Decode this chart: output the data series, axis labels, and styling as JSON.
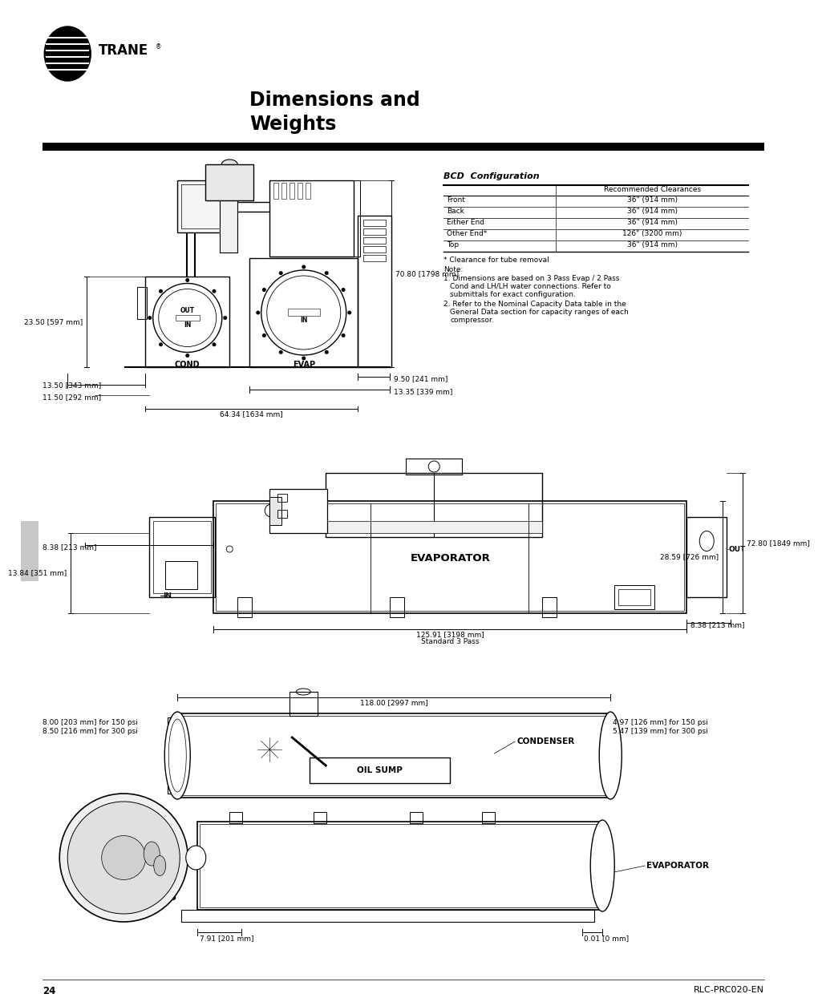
{
  "bg_color": "#ffffff",
  "title_line1": "Dimensions and",
  "title_line2": "Weights",
  "page_number": "24",
  "doc_ref": "RLC-PRC020-EN",
  "table_title": "BCD  Configuration",
  "table_header": "Recommended Clearances",
  "table_rows": [
    [
      "Front",
      "36\" (914 mm)"
    ],
    [
      "Back",
      "36\" (914 mm)"
    ],
    [
      "Either End",
      "36\" (914 mm)"
    ],
    [
      "Other End*",
      "126\" (3200 mm)"
    ],
    [
      "Top",
      "36\" (914 mm)"
    ]
  ],
  "table_footnote": "* Clearance for tube removal",
  "note_label": "Note:",
  "note1a": "1. Dimensions are based on 3 Pass Evap / 2 Pass",
  "note1b": "Cond and LH/LH water connections. Refer to",
  "note1c": "submittals for exact configuration.",
  "note2a": "2. Refer to the Nominal Capacity Data table in the",
  "note2b": "General Data section for capacity ranges of each",
  "note2c": "compressor.",
  "dim_front_23": "23.50 [597 mm]",
  "dim_front_70": "70.80 [1798 mm]",
  "dim_front_13_50": "13.50 [343 mm]",
  "dim_front_11_50": "11.50 [292 mm]",
  "dim_front_64": "64.34 [1634 mm]",
  "dim_front_9_50": "9.50 [241 mm]",
  "dim_front_13_35": "13.35 [339 mm]",
  "dim_side_8_38_left": "8.38 [213 mm]",
  "dim_side_72": "72.80 [1849 mm]",
  "dim_side_28": "28.59 [726 mm]",
  "dim_side_13_84": "13.84 [351 mm]",
  "dim_side_125": "125.91 [3198 mm]",
  "dim_side_std": "Standard 3 Pass",
  "dim_side_8_38_right": "8.38 [213 mm]",
  "dim_bot_118": "118.00 [2997 mm]",
  "dim_bot_8_150": "8.00 [203 mm] for 150 psi",
  "dim_bot_8_300": "8.50 [216 mm] for 300 psi",
  "dim_bot_4_150": "4.97 [126 mm] for 150 psi",
  "dim_bot_5_300": "5.47 [139 mm] for 300 psi",
  "dim_bot_7_91": "7.91 [201 mm]",
  "dim_bot_0_01": "0.01 [0 mm]",
  "label_cond": "COND",
  "label_evap_front": "EVAP",
  "label_evap_side": "EVAPORATOR",
  "label_out_side": "OUT",
  "label_in_side": "IN",
  "label_condenser_bot": "CONDENSER",
  "label_oilsump_bot": "OIL SUMP",
  "label_evap_bot": "EVAPORATOR",
  "label_out_front": "OUT",
  "label_in_front": "IN",
  "label_in_front2": "IN"
}
